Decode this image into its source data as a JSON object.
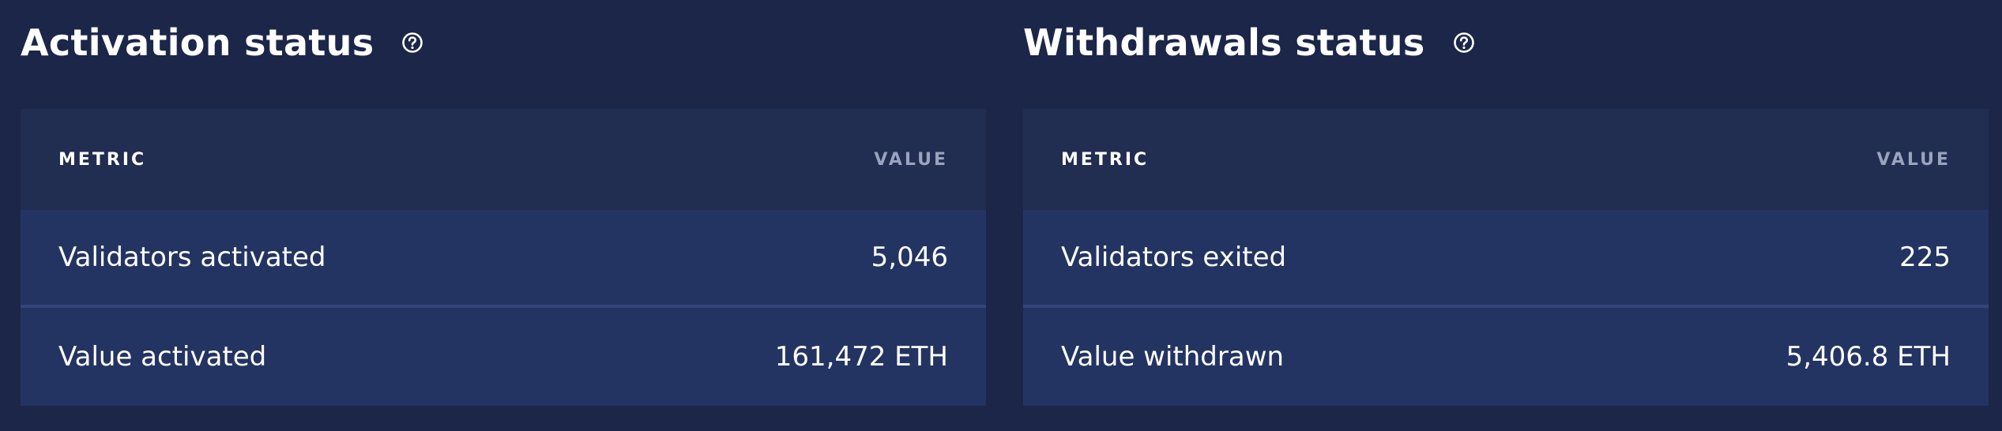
{
  "activation": {
    "title": "Activation status",
    "help_icon": "question-circle-icon",
    "columns": {
      "metric": "METRIC",
      "value": "VALUE"
    },
    "rows": [
      {
        "metric": "Validators activated",
        "value": "5,046"
      },
      {
        "metric": "Value activated",
        "value": "161,472 ETH"
      }
    ]
  },
  "withdrawals": {
    "title": "Withdrawals status",
    "help_icon": "question-circle-icon",
    "columns": {
      "metric": "METRIC",
      "value": "VALUE"
    },
    "rows": [
      {
        "metric": "Validators exited",
        "value": "225"
      },
      {
        "metric": "Value withdrawn",
        "value": "5,406.8 ETH"
      }
    ]
  },
  "colors": {
    "background": "#1b2649",
    "table_header": "#212d51",
    "row": "#243462",
    "divider": "#33457a",
    "muted_text": "#9aa3bd"
  }
}
